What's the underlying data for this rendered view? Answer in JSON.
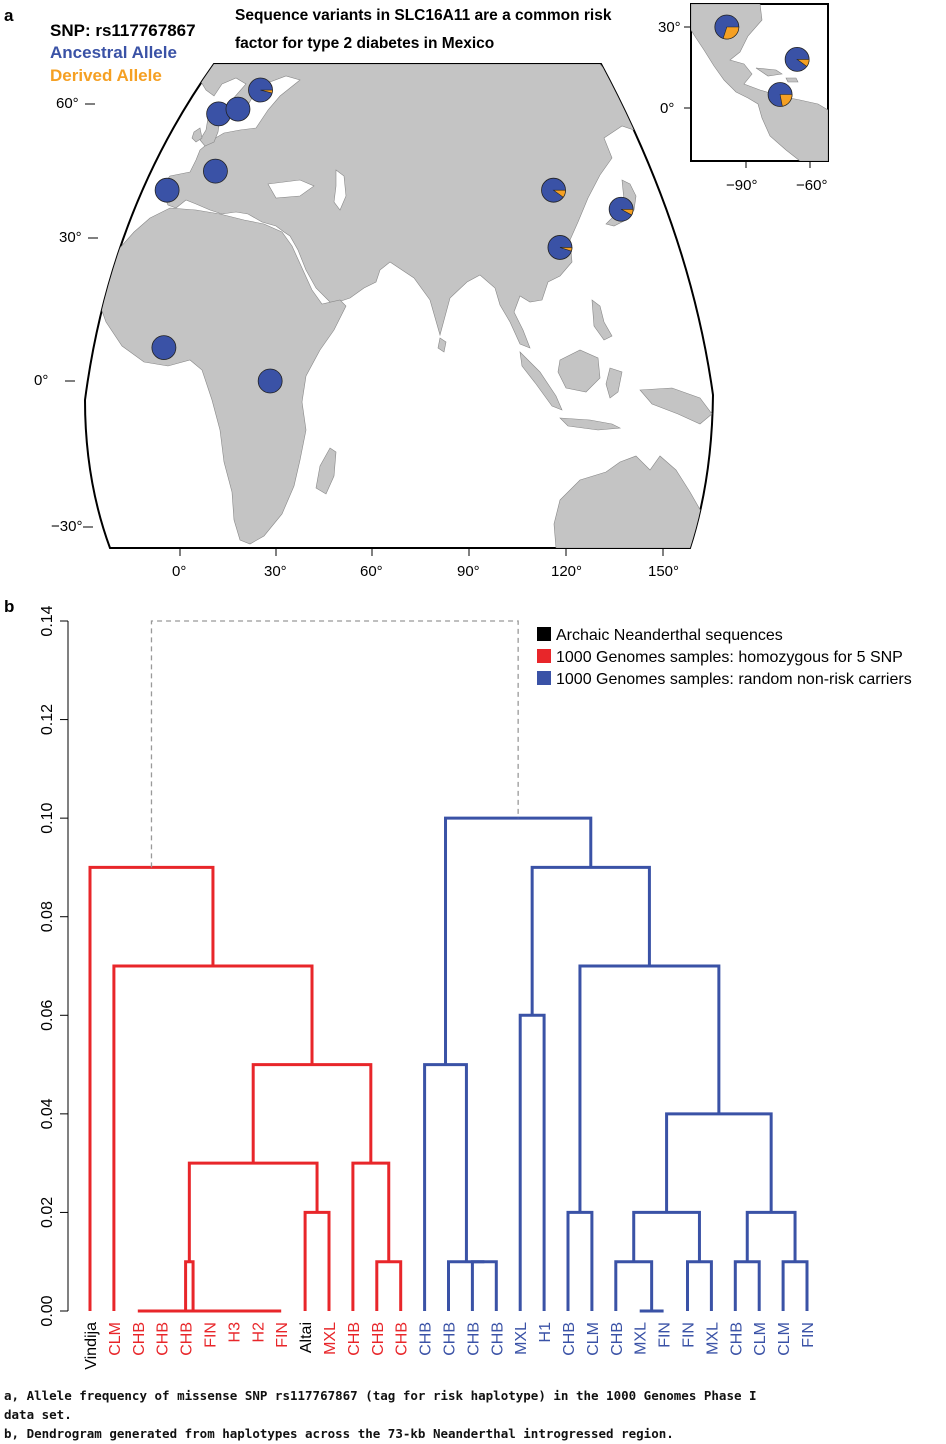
{
  "panel_a": {
    "letter": "a",
    "title_line1": "Sequence variants in SLC16A11 are a common risk",
    "title_line2": "factor for type 2 diabetes in Mexico",
    "snp_label": "SNP: rs117767867",
    "legend": [
      {
        "label": "Ancestral Allele",
        "color": "#3a52a6"
      },
      {
        "label": "Derived Allele",
        "color": "#f5a023"
      }
    ],
    "main_lat_ticks": [
      "60°",
      "30°",
      "0°",
      "−30°"
    ],
    "main_lon_ticks": [
      "0°",
      "30°",
      "60°",
      "90°",
      "120°",
      "150°"
    ],
    "inset_lat_ticks": [
      "30°",
      "0°"
    ],
    "inset_lon_ticks": [
      "−90°",
      "−60°"
    ],
    "colors": {
      "land": "#c4c4c4",
      "ancestral": "#3a52a6",
      "derived": "#f5a023",
      "outline": "#000000"
    }
  },
  "panel_b": {
    "letter": "b",
    "legend": [
      {
        "label": "Archaic Neanderthal sequences",
        "color": "#000000"
      },
      {
        "label": "1000 Genomes samples: homozygous for 5 SNP",
        "color": "#e8262a"
      },
      {
        "label": "1000 Genomes samples: random non-risk carriers",
        "color": "#3a52a6"
      }
    ]
  },
  "chart_data": [
    {
      "type": "map-pie",
      "title": "Sequence variants in SLC16A11 are a common risk factor for type 2 diabetes in Mexico",
      "subtitle": "SNP: rs117767867",
      "series": [
        {
          "name": "Ancestral Allele"
        },
        {
          "name": "Derived Allele"
        }
      ],
      "populations_derived_fraction": [
        {
          "lon": 25,
          "lat": 61,
          "derived": 0.04
        },
        {
          "lon": 12,
          "lat": 56,
          "derived": 0.0
        },
        {
          "lon": 18,
          "lat": 57,
          "derived": 0.0
        },
        {
          "lon": 11,
          "lat": 44,
          "derived": 0.0
        },
        {
          "lon": -4,
          "lat": 40,
          "derived": 0.0
        },
        {
          "lon": 116,
          "lat": 40,
          "derived": 0.1
        },
        {
          "lon": 137,
          "lat": 36,
          "derived": 0.08
        },
        {
          "lon": 118,
          "lat": 28,
          "derived": 0.05
        },
        {
          "lon": -5,
          "lat": 7,
          "derived": 0.0
        },
        {
          "lon": 28,
          "lat": 0,
          "derived": 0.0
        },
        {
          "lon": -99,
          "lat": 30,
          "derived": 0.3
        },
        {
          "lon": -74,
          "lat": 5,
          "derived": 0.22
        },
        {
          "lon": -66,
          "lat": 18,
          "derived": 0.1
        }
      ],
      "lat_ticks": [
        60,
        30,
        0,
        -30
      ],
      "lon_ticks": [
        0,
        30,
        60,
        90,
        120,
        150
      ],
      "inset_lat_ticks": [
        30,
        0
      ],
      "inset_lon_ticks": [
        -90,
        -60
      ]
    },
    {
      "type": "dendrogram",
      "ylim": [
        0,
        0.14
      ],
      "yticks": [
        "0.00",
        "0.02",
        "0.04",
        "0.06",
        "0.08",
        "0.10",
        "0.12",
        "0.14"
      ],
      "leaves": [
        {
          "label": "Vindija",
          "group": "archaic"
        },
        {
          "label": "CLM",
          "group": "risk"
        },
        {
          "label": "CHB",
          "group": "risk"
        },
        {
          "label": "CHB",
          "group": "risk"
        },
        {
          "label": "CHB",
          "group": "risk"
        },
        {
          "label": "FIN",
          "group": "risk"
        },
        {
          "label": "H3",
          "group": "risk"
        },
        {
          "label": "H2",
          "group": "risk"
        },
        {
          "label": "FIN",
          "group": "risk"
        },
        {
          "label": "Altai",
          "group": "archaic"
        },
        {
          "label": "MXL",
          "group": "risk"
        },
        {
          "label": "CHB",
          "group": "risk"
        },
        {
          "label": "CHB",
          "group": "risk"
        },
        {
          "label": "CHB",
          "group": "risk"
        },
        {
          "label": "CHB",
          "group": "nonrisk"
        },
        {
          "label": "CHB",
          "group": "nonrisk"
        },
        {
          "label": "CHB",
          "group": "nonrisk"
        },
        {
          "label": "CHB",
          "group": "nonrisk"
        },
        {
          "label": "MXL",
          "group": "nonrisk"
        },
        {
          "label": "H1",
          "group": "nonrisk"
        },
        {
          "label": "CHB",
          "group": "nonrisk"
        },
        {
          "label": "CLM",
          "group": "nonrisk"
        },
        {
          "label": "CHB",
          "group": "nonrisk"
        },
        {
          "label": "MXL",
          "group": "nonrisk"
        },
        {
          "label": "FIN",
          "group": "nonrisk"
        },
        {
          "label": "FIN",
          "group": "nonrisk"
        },
        {
          "label": "MXL",
          "group": "nonrisk"
        },
        {
          "label": "CHB",
          "group": "nonrisk"
        },
        {
          "label": "CLM",
          "group": "nonrisk"
        },
        {
          "label": "CLM",
          "group": "nonrisk"
        },
        {
          "label": "FIN",
          "group": "nonrisk"
        }
      ],
      "merges": [
        {
          "a": 2,
          "b": 3,
          "h": 0.0,
          "c": "risk"
        },
        {
          "a": 6,
          "b": 7,
          "h": 0.0,
          "c": "risk"
        },
        {
          "a": 32,
          "b": 8,
          "h": 0.0,
          "c": "risk"
        },
        {
          "a": 33,
          "b": 5,
          "h": 0.0,
          "c": "risk"
        },
        {
          "a": 31,
          "b": 34,
          "h": 0.0,
          "c": "risk"
        },
        {
          "a": 4,
          "b": 35,
          "h": 0.01,
          "c": "risk"
        },
        {
          "a": 9,
          "b": 10,
          "h": 0.02,
          "c": "risk"
        },
        {
          "a": 36,
          "b": 37,
          "h": 0.03,
          "c": "risk"
        },
        {
          "a": 12,
          "b": 13,
          "h": 0.01,
          "c": "risk"
        },
        {
          "a": 11,
          "b": 39,
          "h": 0.03,
          "c": "risk"
        },
        {
          "a": 38,
          "b": 40,
          "h": 0.05,
          "c": "risk"
        },
        {
          "a": 1,
          "b": 41,
          "h": 0.07,
          "c": "risk"
        },
        {
          "a": 0,
          "b": 42,
          "h": 0.09,
          "c": "risk"
        },
        {
          "a": 16,
          "b": 17,
          "h": 0.01,
          "c": "nonrisk"
        },
        {
          "a": 15,
          "b": 44,
          "h": 0.01,
          "c": "nonrisk"
        },
        {
          "a": 14,
          "b": 45,
          "h": 0.05,
          "c": "nonrisk"
        },
        {
          "a": 18,
          "b": 19,
          "h": 0.06,
          "c": "nonrisk"
        },
        {
          "a": 20,
          "b": 21,
          "h": 0.02,
          "c": "nonrisk"
        },
        {
          "a": 23,
          "b": 24,
          "h": 0.0,
          "c": "nonrisk"
        },
        {
          "a": 22,
          "b": 49,
          "h": 0.01,
          "c": "nonrisk"
        },
        {
          "a": 25,
          "b": 26,
          "h": 0.01,
          "c": "nonrisk"
        },
        {
          "a": 50,
          "b": 51,
          "h": 0.02,
          "c": "nonrisk"
        },
        {
          "a": 27,
          "b": 28,
          "h": 0.01,
          "c": "nonrisk"
        },
        {
          "a": 29,
          "b": 30,
          "h": 0.01,
          "c": "nonrisk"
        },
        {
          "a": 53,
          "b": 54,
          "h": 0.02,
          "c": "nonrisk"
        },
        {
          "a": 52,
          "b": 55,
          "h": 0.04,
          "c": "nonrisk"
        },
        {
          "a": 48,
          "b": 56,
          "h": 0.07,
          "c": "nonrisk"
        },
        {
          "a": 47,
          "b": 57,
          "h": 0.09,
          "c": "nonrisk"
        },
        {
          "a": 46,
          "b": 58,
          "h": 0.1,
          "c": "nonrisk"
        },
        {
          "a": 43,
          "b": 59,
          "h": 0.14,
          "c": "root"
        }
      ]
    }
  ],
  "captions": [
    "a, Allele frequency of missense SNP rs117767867 (tag for risk haplotype) in the 1000 Genomes Phase I",
    "data set.",
    "b, Dendrogram generated from haplotypes across the 73-kb Neanderthal introgressed region."
  ]
}
